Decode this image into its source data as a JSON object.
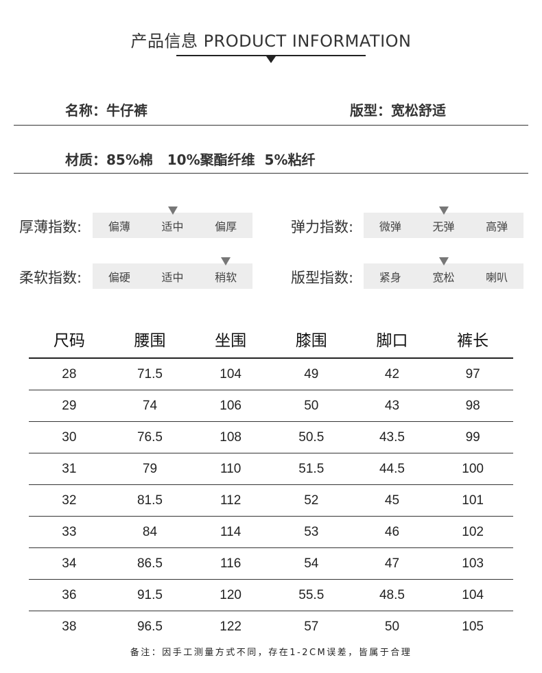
{
  "title": "产品信息 PRODUCT INFORMATION",
  "info": {
    "name": "名称：牛仔裤",
    "fit": "版型：宽松舒适",
    "material": "材质：85%棉   10%聚酯纤维  5%粘纤"
  },
  "indices": [
    {
      "label": "厚薄指数:",
      "options": [
        "偏薄",
        "适中",
        "偏厚"
      ],
      "selected": 1
    },
    {
      "label": "弹力指数:",
      "options": [
        "微弹",
        "无弹",
        "高弹"
      ],
      "selected": 1
    },
    {
      "label": "柔软指数:",
      "options": [
        "偏硬",
        "适中",
        "稍软"
      ],
      "selected": 2
    },
    {
      "label": "版型指数:",
      "options": [
        "紧身",
        "宽松",
        "喇叭"
      ],
      "selected": 1
    }
  ],
  "table": {
    "headers": [
      "尺码",
      "腰围",
      "坐围",
      "膝围",
      "脚口",
      "裤长"
    ],
    "rows": [
      [
        "28",
        "71.5",
        "104",
        "49",
        "42",
        "97"
      ],
      [
        "29",
        "74",
        "106",
        "50",
        "43",
        "98"
      ],
      [
        "30",
        "76.5",
        "108",
        "50.5",
        "43.5",
        "99"
      ],
      [
        "31",
        "79",
        "110",
        "51.5",
        "44.5",
        "100"
      ],
      [
        "32",
        "81.5",
        "112",
        "52",
        "45",
        "101"
      ],
      [
        "33",
        "84",
        "114",
        "53",
        "46",
        "102"
      ],
      [
        "34",
        "86.5",
        "116",
        "54",
        "47",
        "103"
      ],
      [
        "36",
        "91.5",
        "120",
        "55.5",
        "48.5",
        "104"
      ],
      [
        "38",
        "96.5",
        "122",
        "57",
        "50",
        "105"
      ]
    ]
  },
  "note": "备注：因手工测量方式不同，存在1-2CM误差，皆属于合理"
}
